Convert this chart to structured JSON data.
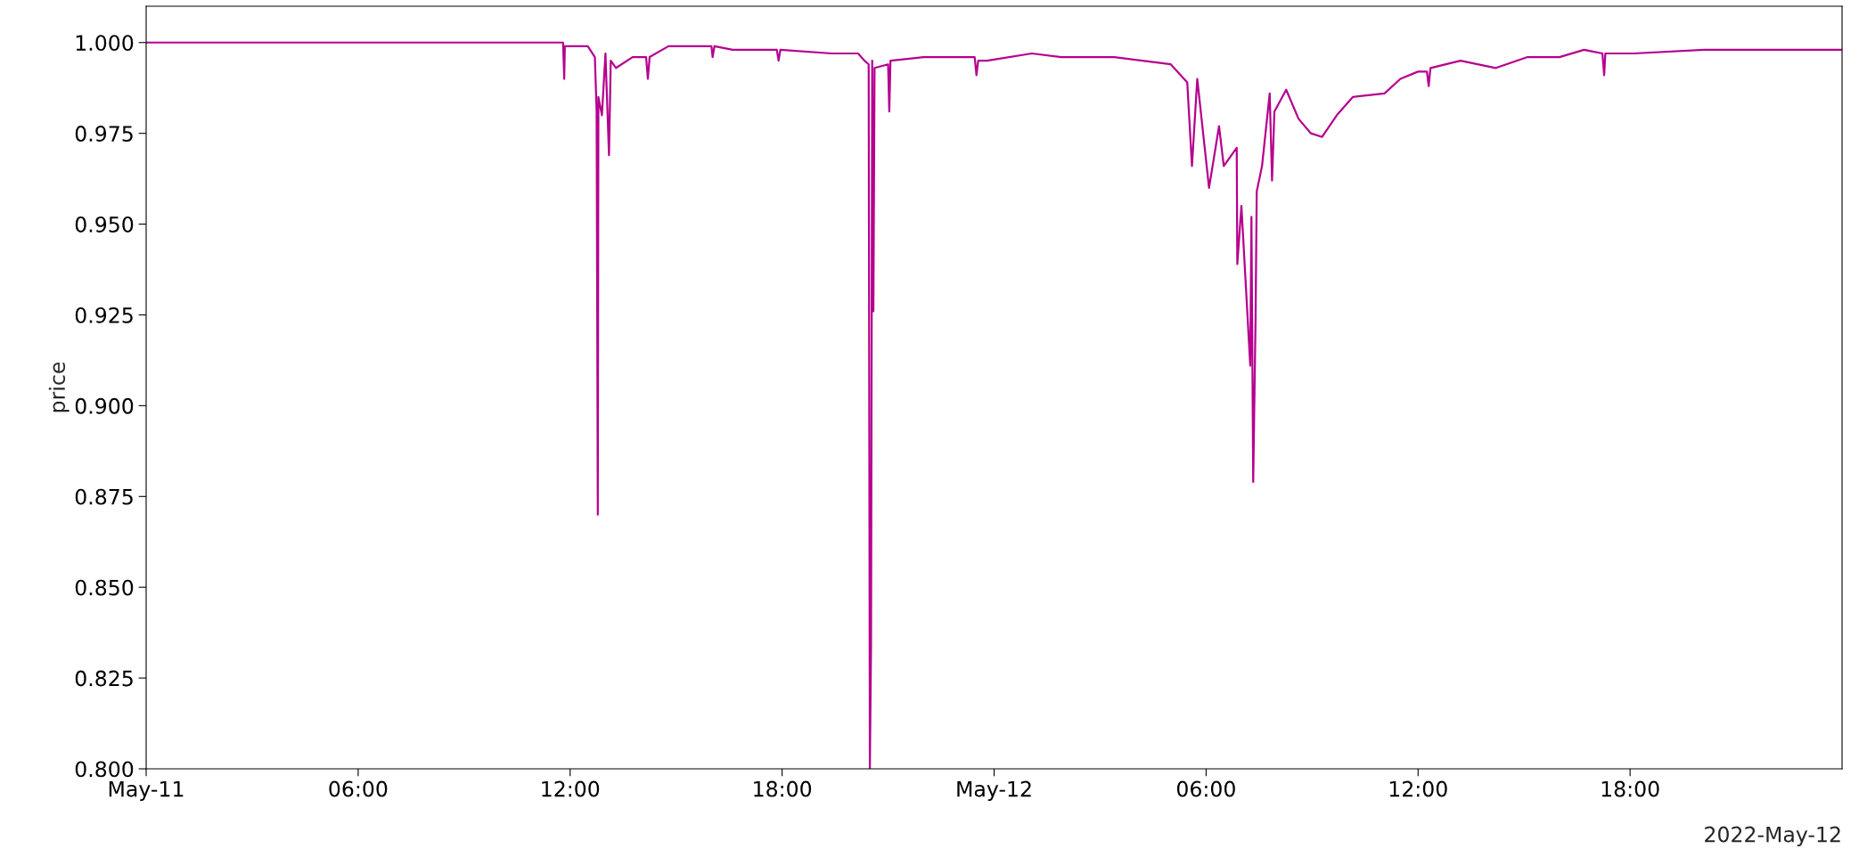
{
  "chart_data": {
    "type": "line",
    "ylabel": "price",
    "annotations": [
      "2022-May-12"
    ],
    "xlim": [
      "2022-05-11T00:00",
      "2022-05-13T00:00"
    ],
    "xticks": [
      {
        "value": "2022-05-11T00:00",
        "label": "May-11"
      },
      {
        "value": "2022-05-11T06:00",
        "label": "06:00"
      },
      {
        "value": "2022-05-11T12:00",
        "label": "12:00"
      },
      {
        "value": "2022-05-11T18:00",
        "label": "18:00"
      },
      {
        "value": "2022-05-12T00:00",
        "label": "May-12"
      },
      {
        "value": "2022-05-12T06:00",
        "label": "06:00"
      },
      {
        "value": "2022-05-12T12:00",
        "label": "12:00"
      },
      {
        "value": "2022-05-12T18:00",
        "label": "18:00"
      }
    ],
    "ylim": [
      0.8,
      1.01
    ],
    "yticks": [
      {
        "value": 0.8,
        "label": "0.800"
      },
      {
        "value": 0.825,
        "label": "0.825"
      },
      {
        "value": 0.85,
        "label": "0.850"
      },
      {
        "value": 0.875,
        "label": "0.875"
      },
      {
        "value": 0.9,
        "label": "0.900"
      },
      {
        "value": 0.925,
        "label": "0.925"
      },
      {
        "value": 0.95,
        "label": "0.950"
      },
      {
        "value": 0.975,
        "label": "0.975"
      },
      {
        "value": 1.0,
        "label": "1.000"
      }
    ],
    "grid": false,
    "marker": "none",
    "line_style": "solid",
    "series": [
      {
        "color": "#b5008e",
        "x": [
          "2022-05-11T00:00",
          "2022-05-11T11:48",
          "2022-05-11T11:50",
          "2022-05-11T11:51",
          "2022-05-11T12:30",
          "2022-05-11T12:42",
          "2022-05-11T12:45",
          "2022-05-11T12:47",
          "2022-05-11T12:48",
          "2022-05-11T12:54",
          "2022-05-11T13:00",
          "2022-05-11T13:06",
          "2022-05-11T13:09",
          "2022-05-11T13:18",
          "2022-05-11T13:46",
          "2022-05-11T14:09",
          "2022-05-11T14:12",
          "2022-05-11T14:15",
          "2022-05-11T14:47",
          "2022-05-11T16:00",
          "2022-05-11T16:02",
          "2022-05-11T16:05",
          "2022-05-11T16:36",
          "2022-05-11T17:12",
          "2022-05-11T17:51",
          "2022-05-11T17:54",
          "2022-05-11T17:57",
          "2022-05-11T19:24",
          "2022-05-11T20:09",
          "2022-05-11T20:20",
          "2022-05-11T20:27",
          "2022-05-11T20:29",
          "2022-05-11T20:31",
          "2022-05-11T20:33",
          "2022-05-11T20:35",
          "2022-05-11T20:37",
          "2022-05-11T21:00",
          "2022-05-11T21:02",
          "2022-05-11T21:04",
          "2022-05-11T22:00",
          "2022-05-11T23:27",
          "2022-05-11T23:30",
          "2022-05-11T23:33",
          "2022-05-11T23:48",
          "2022-05-12T01:04",
          "2022-05-12T01:54",
          "2022-05-12T03:24",
          "2022-05-12T05:00",
          "2022-05-12T05:28",
          "2022-05-12T05:36",
          "2022-05-12T05:45",
          "2022-05-12T06:05",
          "2022-05-12T06:22",
          "2022-05-12T06:30",
          "2022-05-12T06:52",
          "2022-05-12T06:53",
          "2022-05-12T07:00",
          "2022-05-12T07:15",
          "2022-05-12T07:17",
          "2022-05-12T07:20",
          "2022-05-12T07:24",
          "2022-05-12T07:26",
          "2022-05-12T07:35",
          "2022-05-12T07:48",
          "2022-05-12T07:52",
          "2022-05-12T07:56",
          "2022-05-12T08:16",
          "2022-05-12T08:37",
          "2022-05-12T08:58",
          "2022-05-12T09:17",
          "2022-05-12T09:42",
          "2022-05-12T10:09",
          "2022-05-12T11:03",
          "2022-05-12T11:30",
          "2022-05-12T12:00",
          "2022-05-12T12:15",
          "2022-05-12T12:18",
          "2022-05-12T12:21",
          "2022-05-12T13:12",
          "2022-05-12T14:12",
          "2022-05-12T15:06",
          "2022-05-12T16:00",
          "2022-05-12T16:42",
          "2022-05-12T17:13",
          "2022-05-12T17:16",
          "2022-05-12T17:18",
          "2022-05-12T18:06",
          "2022-05-12T20:06",
          "2022-05-13T00:00"
        ],
        "values": [
          1.0,
          1.0,
          0.99,
          0.999,
          0.999,
          0.996,
          0.981,
          0.87,
          0.985,
          0.98,
          0.997,
          0.969,
          0.995,
          0.993,
          0.996,
          0.996,
          0.99,
          0.996,
          0.999,
          0.999,
          0.996,
          0.999,
          0.998,
          0.998,
          0.998,
          0.995,
          0.998,
          0.997,
          0.997,
          0.995,
          0.994,
          0.8,
          0.834,
          0.995,
          0.926,
          0.993,
          0.994,
          0.981,
          0.995,
          0.996,
          0.996,
          0.991,
          0.995,
          0.995,
          0.997,
          0.996,
          0.996,
          0.994,
          0.989,
          0.966,
          0.99,
          0.96,
          0.977,
          0.966,
          0.971,
          0.939,
          0.955,
          0.911,
          0.952,
          0.879,
          0.924,
          0.959,
          0.966,
          0.986,
          0.962,
          0.981,
          0.987,
          0.979,
          0.975,
          0.974,
          0.98,
          0.985,
          0.986,
          0.99,
          0.992,
          0.992,
          0.988,
          0.993,
          0.995,
          0.993,
          0.996,
          0.996,
          0.998,
          0.997,
          0.991,
          0.997,
          0.997,
          0.998,
          0.998
        ]
      }
    ]
  }
}
